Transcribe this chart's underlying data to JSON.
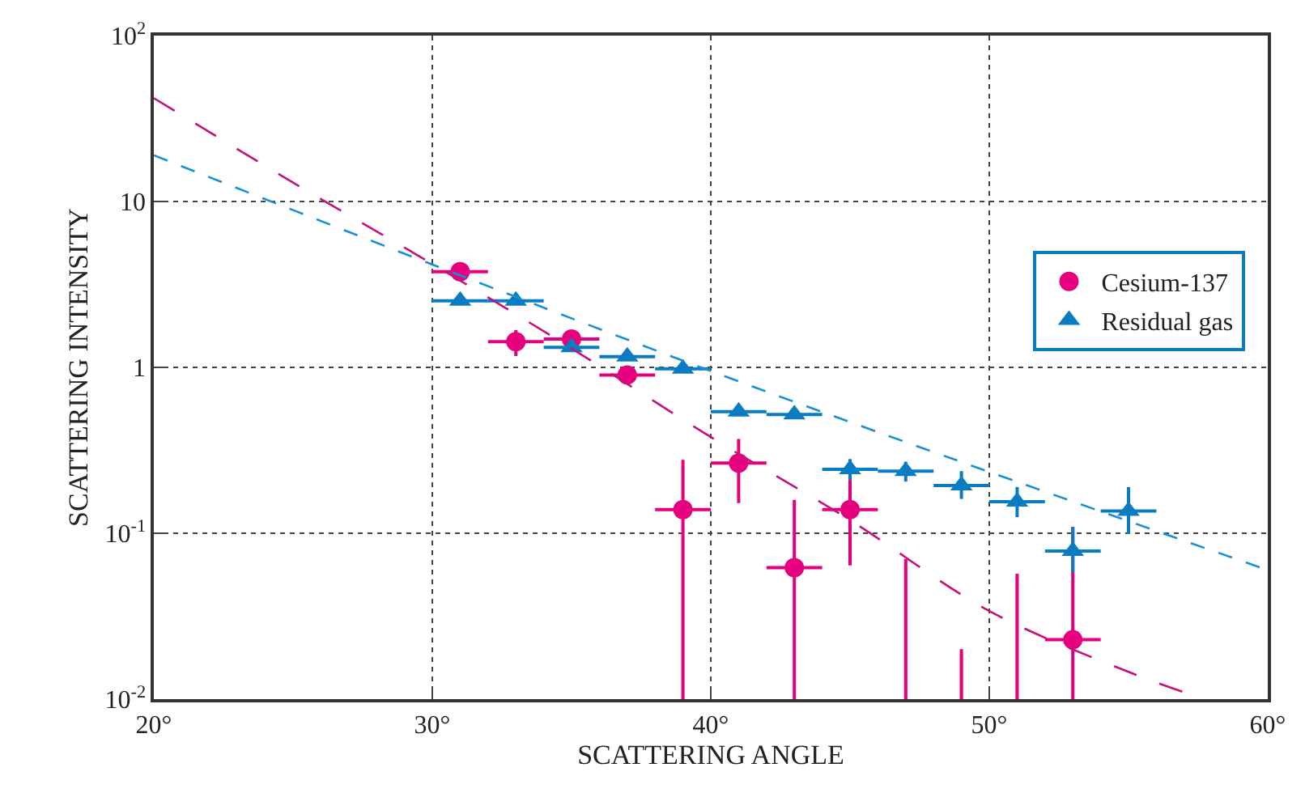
{
  "chart_data": {
    "type": "scatter",
    "xlabel": "SCATTERING ANGLE",
    "ylabel": "SCATTERING INTENSITY",
    "log": "y",
    "grid": true,
    "legend": "right",
    "xlim": [
      20,
      60
    ],
    "xticks": [
      {
        "value": 20,
        "label": "20°"
      },
      {
        "value": 30,
        "label": "30°"
      },
      {
        "value": 40,
        "label": "40°"
      },
      {
        "value": 50,
        "label": "50°"
      },
      {
        "value": 60,
        "label": "60°"
      }
    ],
    "ylim": [
      0.01,
      100
    ],
    "yticks": [
      {
        "value": 0.01,
        "label": "10$^{-2}$"
      },
      {
        "value": 0.1,
        "label": "10$^{-1}$"
      },
      1,
      10,
      {
        "value": 100,
        "label": "10$^{2}$"
      }
    ],
    "series": [
      {
        "name": "Cesium-137",
        "marker": "circle",
        "color": "#e6007e",
        "x": [
          31,
          33,
          35,
          37,
          39,
          41,
          43,
          45,
          53
        ],
        "values": [
          3.77,
          1.43,
          1.48,
          0.9,
          0.139,
          0.265,
          0.062,
          0.139,
          0.0228
        ],
        "errors": [
          null,
          [
            1.17,
            1.68
          ],
          null,
          null,
          [
            0.01,
            0.277
          ],
          [
            0.152,
            0.37
          ],
          [
            0.01,
            0.159
          ],
          [
            0.064,
            0.237
          ],
          [
            0.01,
            0.109
          ]
        ],
        "xerrors": [
          1,
          1,
          1,
          1,
          1,
          1,
          1,
          1,
          1
        ]
      },
      {
        "type": "bar",
        "color": "#e6007e",
        "x": [
          47,
          49,
          51
        ],
        "base": [
          0.01,
          0.01,
          0.01
        ],
        "values": [
          0.06,
          0.01,
          0.047
        ]
      },
      {
        "name": "Residual gas",
        "marker": "triangle",
        "color": "#0a7cc1",
        "x": [
          31,
          33,
          35,
          37,
          39,
          41,
          43,
          45,
          47,
          49,
          51,
          53,
          55
        ],
        "values": [
          2.52,
          2.52,
          1.32,
          1.16,
          0.98,
          0.54,
          0.52,
          0.243,
          0.237,
          0.194,
          0.155,
          0.078,
          0.136
        ],
        "errors": [
          null,
          null,
          null,
          null,
          null,
          null,
          null,
          [
            0.21,
            0.28
          ],
          [
            0.205,
            0.27
          ],
          [
            0.161,
            0.237
          ],
          [
            0.125,
            0.19
          ],
          [
            0.058,
            0.109
          ],
          [
            0.099,
            0.19
          ]
        ],
        "xerrors": [
          1,
          1,
          1,
          1,
          1,
          1,
          1,
          1,
          1,
          1,
          1,
          1,
          1
        ]
      },
      {
        "type": "line",
        "line_style": "dashed",
        "color": "#c8107a",
        "x": [
          20,
          25,
          30,
          35,
          40,
          45,
          50,
          55,
          57
        ],
        "values": [
          42,
          13,
          4.2,
          1.3,
          0.38,
          0.12,
          0.034,
          0.0146,
          0.011
        ]
      },
      {
        "type": "line",
        "line_style": "dotted",
        "color": "#1a8fd6",
        "x": [
          20,
          40,
          60
        ],
        "values": [
          19,
          0.95,
          0.06
        ]
      }
    ]
  }
}
